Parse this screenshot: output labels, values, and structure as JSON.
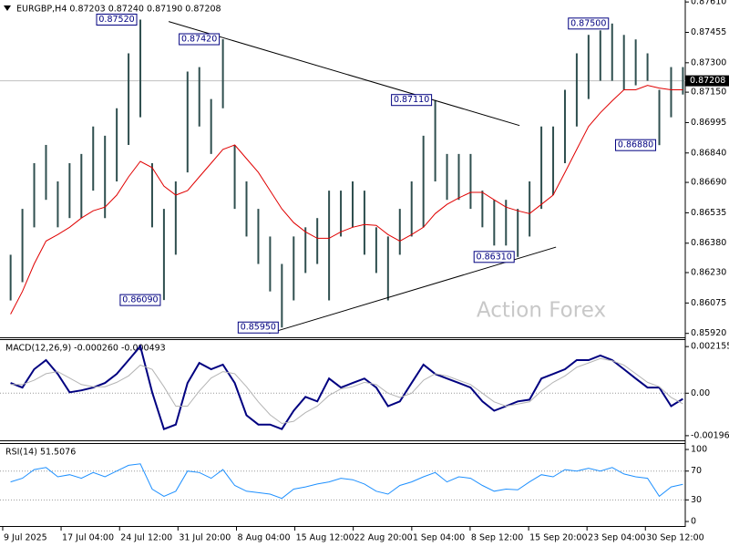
{
  "chart_data": [
    {
      "type": "hilo",
      "title": "EURGBP,H4  0.87203 0.87240 0.87190 0.87208",
      "watermark": "Action Forex",
      "x": [
        -1,
        0,
        1,
        2,
        3,
        4,
        5,
        6,
        7,
        8,
        9,
        10,
        11,
        12,
        13,
        14,
        15,
        16,
        17,
        18,
        19,
        20,
        21,
        22,
        23,
        24,
        25,
        26,
        27,
        28,
        29,
        30,
        31,
        32,
        33,
        34,
        35,
        36,
        37,
        38,
        39,
        40,
        41,
        42,
        43,
        44,
        45,
        46,
        47,
        48,
        49,
        50,
        51,
        52,
        53,
        54,
        55,
        56
      ],
      "xlim": [
        -1.9,
        56.2
      ],
      "ylim": [
        0.859,
        0.8762
      ],
      "yticks": [
        {
          "value": 0.8761,
          "label": "0.87610"
        },
        0.87455,
        {
          "value": 0.873,
          "label": "0.87300"
        },
        {
          "value": 0.8715,
          "label": "0.87150"
        },
        0.86995,
        {
          "value": 0.8684,
          "label": "0.86840"
        },
        {
          "value": 0.8669,
          "label": "0.86690"
        },
        0.86535,
        {
          "value": 0.8638,
          "label": "0.86380"
        },
        {
          "value": 0.8623,
          "label": "0.86230"
        },
        0.86075,
        {
          "value": 0.8592,
          "label": "0.85920"
        }
      ],
      "color": "#2f4f4f",
      "high": [
        0.86321,
        0.86555,
        0.86788,
        0.86881,
        0.86695,
        0.86788,
        0.86835,
        0.86975,
        0.86928,
        0.87068,
        0.87348,
        0.8752,
        0.86788,
        0.86555,
        0.86695,
        0.87255,
        0.87278,
        0.87115,
        0.8742,
        0.86881,
        0.86695,
        0.86555,
        0.86414,
        0.86274,
        0.86414,
        0.86461,
        0.86508,
        0.86648,
        0.86648,
        0.86695,
        0.86648,
        0.86461,
        0.86414,
        0.86555,
        0.86695,
        0.86928,
        0.8711,
        0.86835,
        0.86835,
        0.86835,
        0.86648,
        0.86601,
        0.86601,
        0.86555,
        0.86695,
        0.86975,
        0.86975,
        0.87162,
        0.87348,
        0.87442,
        0.87465,
        0.875,
        0.87442,
        0.87419,
        0.87348,
        0.87162,
        0.87278,
        0.87278
      ],
      "low": [
        0.86088,
        0.86181,
        0.86461,
        0.86601,
        0.86461,
        0.86508,
        0.86508,
        0.86648,
        0.86508,
        0.86695,
        0.86881,
        0.87022,
        0.86461,
        0.8609,
        0.86321,
        0.86741,
        0.86975,
        0.86835,
        0.87068,
        0.86555,
        0.86414,
        0.86274,
        0.86134,
        0.8595,
        0.86088,
        0.86228,
        0.86274,
        0.86088,
        0.86414,
        0.86461,
        0.86321,
        0.86228,
        0.86088,
        0.86321,
        0.86414,
        0.86461,
        0.86695,
        0.86601,
        0.86601,
        0.86555,
        0.86461,
        0.86368,
        0.86368,
        0.8631,
        0.86414,
        0.86555,
        0.86625,
        0.86788,
        0.86975,
        0.87115,
        0.87208,
        0.87208,
        0.87162,
        0.87185,
        0.87208,
        0.8688,
        0.87022,
        0.87138
      ],
      "series": [
        {
          "color": "#e00000",
          "values": [
            0.86018,
            0.86134,
            0.86274,
            0.86391,
            0.86424,
            0.86461,
            0.86508,
            0.86545,
            0.86564,
            0.86625,
            0.86718,
            0.86797,
            0.86765,
            0.86671,
            0.86625,
            0.86648,
            0.86718,
            0.86788,
            0.86858,
            0.86881,
            0.86811,
            0.86741,
            0.86648,
            0.86555,
            0.86485,
            0.86438,
            0.86405,
            0.86405,
            0.86438,
            0.86461,
            0.86475,
            0.86471,
            0.86424,
            0.86391,
            0.86424,
            0.86461,
            0.86531,
            0.86578,
            0.86611,
            0.86639,
            0.86639,
            0.86601,
            0.86564,
            0.86545,
            0.86531,
            0.86578,
            0.86625,
            0.86741,
            0.86858,
            0.86975,
            0.87045,
            0.87106,
            0.87162,
            0.87162,
            0.87185,
            0.87171,
            0.87162,
            0.87162
          ]
        }
      ],
      "last": {
        "value": 0.87208,
        "label": "0.87208"
      },
      "annotations": [
        {
          "x": 10,
          "value": 0.8752,
          "label": "0.87520"
        },
        {
          "x": 17,
          "value": 0.8742,
          "label": "0.87420"
        },
        {
          "x": 35,
          "value": 0.8711,
          "label": "0.87110"
        },
        {
          "x": 50,
          "value": 0.875,
          "label": "0.87500"
        },
        {
          "x": 12,
          "value": 0.8609,
          "label": "0.86090"
        },
        {
          "x": 22,
          "value": 0.8595,
          "label": "0.85950"
        },
        {
          "x": 42,
          "value": 0.8631,
          "label": "0.86310"
        },
        {
          "x": 54,
          "value": 0.8688,
          "label": "0.86880"
        }
      ],
      "trendlines": [
        {
          "x": [
            12.4,
            42.15
          ],
          "values": [
            0.8751,
            0.8698
          ]
        },
        {
          "x": [
            20.9,
            45.24
          ],
          "values": [
            0.8592,
            0.8636
          ]
        }
      ]
    },
    {
      "type": "line",
      "title": "MACD(12,26,9) -0.000260 -0.000493",
      "ylim": [
        -0.00218,
        0.0025
      ],
      "yticks": [
        0.002155,
        {
          "value": 0,
          "label": "0.00"
        },
        -0.001965
      ],
      "levels": [
        0
      ],
      "series": [
        {
          "color": "#000080",
          "values": [
            0.00047,
            0.00026,
            0.00111,
            0.00153,
            0.00089,
            4e-05,
            0.00013,
            0.00026,
            0.00047,
            0.00089,
            0.00153,
            0.00217,
            4e-05,
            -0.00166,
            -0.00145,
            0.00047,
            0.0014,
            0.00111,
            0.00132,
            0.00047,
            -0.00102,
            -0.00145,
            -0.00145,
            -0.00166,
            -0.00081,
            -0.00017,
            -0.00038,
            0.00068,
            0.00026,
            0.00047,
            0.00068,
            0.00026,
            -0.0006,
            -0.00038,
            0.00047,
            0.00132,
            0.00089,
            0.00068,
            0.00047,
            0.00026,
            -0.00038,
            -0.00081,
            -0.0006,
            -0.00038,
            -0.0003,
            0.00068,
            0.00089,
            0.00111,
            0.00153,
            0.00153,
            0.00174,
            0.00153,
            0.00111,
            0.00068,
            0.00026,
            0.00026,
            -0.0006,
            -0.00026
          ]
        },
        {
          "color": "#b4b4b4",
          "values": [
            0.0004,
            0.0004,
            0.0006,
            0.0009,
            0.001,
            0.0007,
            0.0004,
            0.0003,
            0.0003,
            0.0005,
            0.0008,
            0.0013,
            0.0011,
            0.0003,
            -0.0006,
            -0.0006,
            0.0001,
            0.0007,
            0.001,
            0.0009,
            0.0003,
            -0.0004,
            -0.001,
            -0.0014,
            -0.0013,
            -0.0009,
            -0.0006,
            -0.0001,
            0.0002,
            0.0003,
            0.0005,
            0.0004,
            0,
            -0.0002,
            0,
            0.0006,
            0.0009,
            0.0008,
            0.0006,
            0.0004,
            0,
            -0.0004,
            -0.0006,
            -0.0005,
            -0.0004,
            0.0001,
            0.0005,
            0.0008,
            0.0012,
            0.0014,
            0.0016,
            0.0015,
            0.0013,
            0.0009,
            0.0005,
            0.0003,
            -0.0002,
            -0.00049
          ]
        }
      ]
    },
    {
      "type": "line",
      "title": "RSI(14) 51.5076",
      "ylim": [
        -6.3,
        108.9
      ],
      "yticks": [
        100,
        70,
        30,
        0
      ],
      "levels": [
        70,
        30
      ],
      "series": [
        {
          "color": "#1e90ff",
          "values": [
            55,
            60,
            72,
            75,
            62,
            65,
            60,
            68,
            62,
            70,
            78,
            80,
            45,
            35,
            42,
            70,
            68,
            60,
            72,
            50,
            42,
            40,
            38,
            32,
            45,
            48,
            52,
            55,
            60,
            58,
            52,
            42,
            38,
            50,
            55,
            62,
            68,
            55,
            62,
            60,
            50,
            42,
            45,
            44,
            55,
            65,
            62,
            72,
            70,
            74,
            70,
            75,
            66,
            62,
            60,
            35,
            48,
            51.5076
          ]
        }
      ],
      "xticks": [
        {
          "value": -1.67,
          "label": "9 Jul 2025"
        },
        {
          "value": 3.28,
          "label": "17 Jul 04:00"
        },
        {
          "value": 8.24,
          "label": "24 Jul 12:00"
        },
        {
          "value": 13.19,
          "label": "31 Jul 20:00"
        },
        {
          "value": 18.15,
          "label": "8 Aug 04:00"
        },
        {
          "value": 23.1,
          "label": "15 Aug 12:00"
        },
        {
          "value": 28.05,
          "label": "22 Aug 20:00"
        },
        {
          "value": 33.01,
          "label": "1 Sep 04:00"
        },
        {
          "value": 37.96,
          "label": "8 Sep 12:00"
        },
        {
          "value": 42.92,
          "label": "15 Sep 20:00"
        },
        {
          "value": 47.87,
          "label": "23 Sep 04:00"
        },
        {
          "value": 52.82,
          "label": "30 Sep 12:00"
        }
      ]
    }
  ]
}
